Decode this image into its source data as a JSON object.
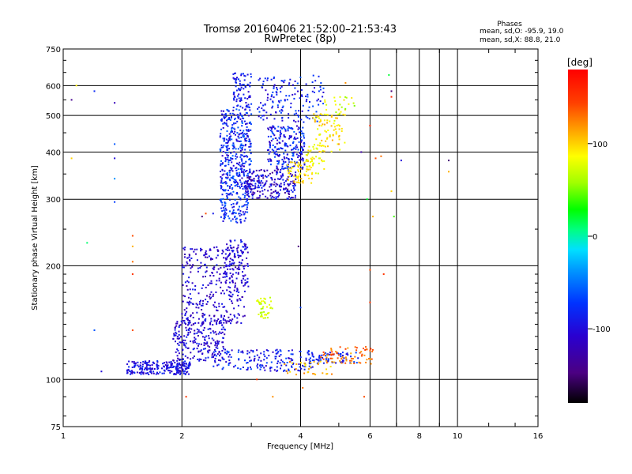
{
  "chart_data": {
    "type": "scatter",
    "title": "Tromsø 20160406 21:52:00–21:53:43",
    "subtitle": "RwPretec (8p)",
    "xlabel": "Frequency [MHz]",
    "ylabel": "Stationary phase Virtual Height [km]",
    "x_scale": "log",
    "y_scale": "log",
    "xlim": [
      1,
      16
    ],
    "ylim": [
      75,
      750
    ],
    "x_ticks": [
      1,
      2,
      4,
      6,
      8,
      10,
      16
    ],
    "x_tick_labels": [
      "1",
      "2",
      "4",
      "6",
      "8",
      "10",
      "16"
    ],
    "x_minor_ticks": [
      7,
      9
    ],
    "y_ticks": [
      75,
      100,
      200,
      300,
      400,
      500,
      600,
      750
    ],
    "y_tick_labels": [
      "75",
      "100",
      "200",
      "300",
      "400",
      "500",
      "600",
      "750"
    ],
    "grid": true,
    "legend": {
      "title": "Phases",
      "lines": [
        "mean, sd,O: -95.9, 19.0",
        "mean, sd,X:  88.8, 21.0"
      ],
      "placement": "top-right"
    },
    "colorbar": {
      "label": "[deg]",
      "range": [
        -180,
        180
      ],
      "ticks": [
        100,
        0,
        -100
      ],
      "tick_labels": [
        "100",
        "0",
        "-100"
      ],
      "colormap": "rainbow"
    },
    "series": [
      {
        "description_of_clusters": "O-mode clusters, phase near -96 deg",
        "clusters": [
          {
            "f": [
              1.45,
              2.1
            ],
            "h": [
              103,
              112
            ],
            "n": 230,
            "phase": [
              -120,
              -75
            ]
          },
          {
            "f": [
              1.9,
              2.6
            ],
            "h": [
              112,
              145
            ],
            "n": 230,
            "phase": [
              -125,
              -80
            ]
          },
          {
            "f": [
              2.0,
              2.9
            ],
            "h": [
              140,
              225
            ],
            "n": 330,
            "phase": [
              -130,
              -85
            ]
          },
          {
            "f": [
              2.55,
              2.95
            ],
            "h": [
              170,
              235
            ],
            "n": 80,
            "phase": [
              -120,
              -80
            ]
          },
          {
            "f": [
              2.4,
              4.3
            ],
            "h": [
              105,
              120
            ],
            "n": 170,
            "phase": [
              -115,
              -60
            ]
          },
          {
            "f": [
              2.5,
              2.95
            ],
            "h": [
              260,
              320
            ],
            "n": 120,
            "phase": [
              -105,
              -55
            ]
          },
          {
            "f": [
              2.5,
              3.0
            ],
            "h": [
              320,
              520
            ],
            "n": 380,
            "phase": [
              -115,
              -50
            ]
          },
          {
            "f": [
              2.7,
              3.0
            ],
            "h": [
              520,
              650
            ],
            "n": 80,
            "phase": [
              -110,
              -70
            ]
          },
          {
            "f": [
              2.9,
              3.9
            ],
            "h": [
              300,
              360
            ],
            "n": 230,
            "phase": [
              -140,
              -75
            ]
          },
          {
            "f": [
              3.3,
              4.1
            ],
            "h": [
              360,
              470
            ],
            "n": 230,
            "phase": [
              -120,
              -55
            ]
          },
          {
            "f": [
              3.1,
              4.6
            ],
            "h": [
              480,
              640
            ],
            "n": 150,
            "phase": [
              -110,
              -60
            ]
          },
          {
            "f": [
              4.2,
              5.6
            ],
            "h": [
              110,
              118
            ],
            "n": 70,
            "phase": [
              -110,
              -60
            ]
          }
        ]
      },
      {
        "description_of_clusters": "X-mode clusters, phase near +89 deg",
        "clusters": [
          {
            "f": [
              3.7,
              4.3
            ],
            "h": [
              330,
              380
            ],
            "n": 60,
            "phase": [
              80,
              110
            ]
          },
          {
            "f": [
              4.1,
              4.6
            ],
            "h": [
              350,
              420
            ],
            "n": 40,
            "phase": [
              70,
              110
            ]
          },
          {
            "f": [
              4.3,
              5.2
            ],
            "h": [
              400,
              510
            ],
            "n": 80,
            "phase": [
              70,
              115
            ]
          },
          {
            "f": [
              4.5,
              5.5
            ],
            "h": [
              500,
              560
            ],
            "n": 25,
            "phase": [
              50,
              100
            ]
          },
          {
            "f": [
              3.1,
              3.4
            ],
            "h": [
              145,
              165
            ],
            "n": 40,
            "phase": [
              55,
              85
            ]
          },
          {
            "f": [
              4.5,
              6.1
            ],
            "h": [
              110,
              122
            ],
            "n": 70,
            "phase": [
              110,
              150
            ]
          },
          {
            "f": [
              3.6,
              4.8
            ],
            "h": [
              103,
              112
            ],
            "n": 35,
            "phase": [
              90,
              130
            ]
          }
        ]
      }
    ],
    "scattered_points": [
      {
        "f": 1.05,
        "h": 550,
        "phase": -140
      },
      {
        "f": 1.08,
        "h": 600,
        "phase": 90
      },
      {
        "f": 1.15,
        "h": 230,
        "phase": 10
      },
      {
        "f": 1.2,
        "h": 135,
        "phase": -60
      },
      {
        "f": 1.2,
        "h": 580,
        "phase": -80
      },
      {
        "f": 1.25,
        "h": 105,
        "phase": -100
      },
      {
        "f": 1.35,
        "h": 540,
        "phase": -120
      },
      {
        "f": 1.35,
        "h": 420,
        "phase": -60
      },
      {
        "f": 1.35,
        "h": 385,
        "phase": -100
      },
      {
        "f": 1.35,
        "h": 340,
        "phase": -40
      },
      {
        "f": 1.35,
        "h": 295,
        "phase": -70
      },
      {
        "f": 1.5,
        "h": 240,
        "phase": 140
      },
      {
        "f": 1.5,
        "h": 225,
        "phase": 110
      },
      {
        "f": 1.5,
        "h": 205,
        "phase": 130
      },
      {
        "f": 1.5,
        "h": 190,
        "phase": 150
      },
      {
        "f": 1.5,
        "h": 135,
        "phase": 140
      },
      {
        "f": 1.05,
        "h": 385,
        "phase": 100
      },
      {
        "f": 2.05,
        "h": 90,
        "phase": 150
      },
      {
        "f": 2.25,
        "h": 270,
        "phase": -150
      },
      {
        "f": 2.3,
        "h": 275,
        "phase": 140
      },
      {
        "f": 2.4,
        "h": 275,
        "phase": -90
      },
      {
        "f": 3.4,
        "h": 90,
        "phase": 120
      },
      {
        "f": 3.1,
        "h": 100,
        "phase": 150
      },
      {
        "f": 3.95,
        "h": 225,
        "phase": -150
      },
      {
        "f": 4.0,
        "h": 155,
        "phase": -70
      },
      {
        "f": 4.05,
        "h": 95,
        "phase": 130
      },
      {
        "f": 5.0,
        "h": 420,
        "phase": 120
      },
      {
        "f": 5.7,
        "h": 400,
        "phase": -130
      },
      {
        "f": 5.9,
        "h": 300,
        "phase": 20
      },
      {
        "f": 6.0,
        "h": 470,
        "phase": 160
      },
      {
        "f": 6.0,
        "h": 160,
        "phase": 150
      },
      {
        "f": 6.0,
        "h": 195,
        "phase": 140
      },
      {
        "f": 6.1,
        "h": 270,
        "phase": 110
      },
      {
        "f": 6.2,
        "h": 385,
        "phase": 140
      },
      {
        "f": 6.5,
        "h": 190,
        "phase": 150
      },
      {
        "f": 6.7,
        "h": 640,
        "phase": 20
      },
      {
        "f": 6.8,
        "h": 580,
        "phase": -150
      },
      {
        "f": 6.8,
        "h": 560,
        "phase": 160
      },
      {
        "f": 6.8,
        "h": 315,
        "phase": 100
      },
      {
        "f": 6.9,
        "h": 270,
        "phase": 40
      },
      {
        "f": 6.4,
        "h": 390,
        "phase": 130
      },
      {
        "f": 7.2,
        "h": 380,
        "phase": -100
      },
      {
        "f": 9.5,
        "h": 380,
        "phase": -150
      },
      {
        "f": 9.5,
        "h": 355,
        "phase": 110
      },
      {
        "f": 5.8,
        "h": 90,
        "phase": 140
      },
      {
        "f": 5.2,
        "h": 610,
        "phase": 120
      }
    ]
  }
}
